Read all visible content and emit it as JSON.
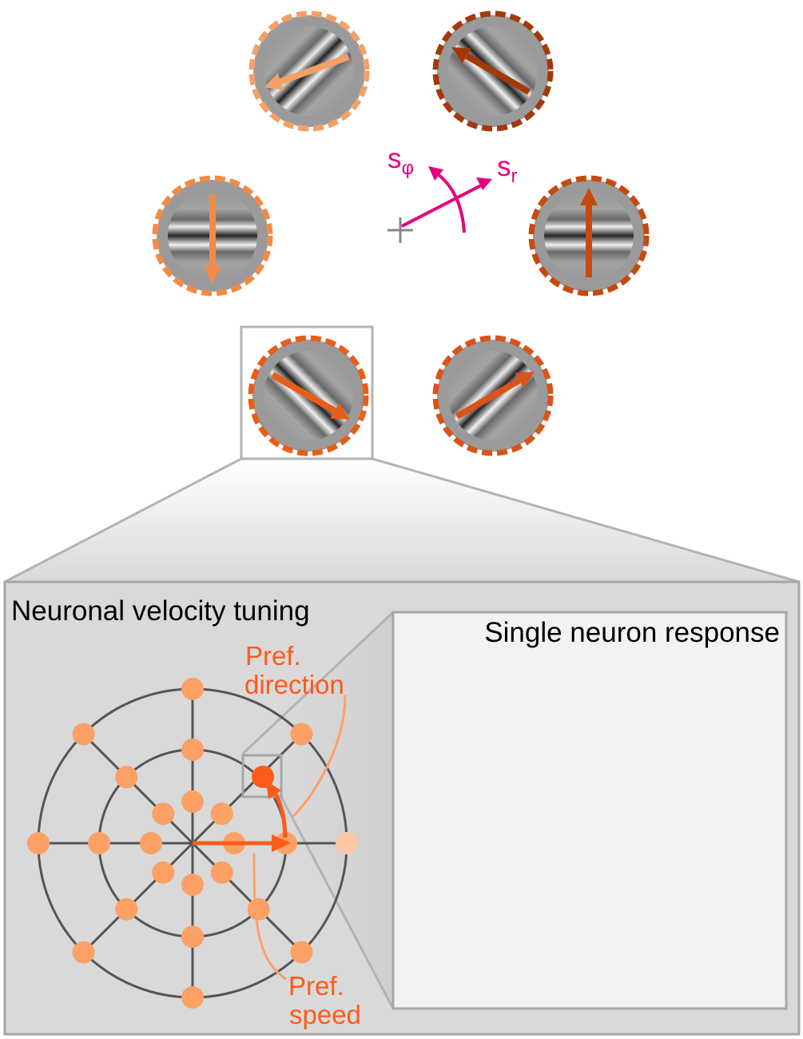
{
  "labels": {
    "s_phi": "s",
    "s_phi_sub": "φ",
    "s_r": "s",
    "s_r_sub": "r",
    "tuning_title": "Neuronal velocity tuning",
    "response_title": "Single neuron response",
    "pref_direction_line1": "Pref.",
    "pref_direction_line2": "direction",
    "pref_speed_line1": "Pref.",
    "pref_speed_line2": "speed"
  },
  "colors": {
    "axis_magenta": "#e6007e",
    "pref_orange": "#ff5a1a",
    "dot_orange": "#fca066",
    "grid_gray": "#555555",
    "panel_gray": "#d9d9d9",
    "inner_panel": "#f2f2f2"
  },
  "stimuli": [
    {
      "name": "stimulus-upper-left",
      "angle_deg": 200,
      "stripe_angle_deg": -45,
      "color": "#f4a066",
      "highlighted": false
    },
    {
      "name": "stimulus-upper-right",
      "angle_deg": 150,
      "stripe_angle_deg": 45,
      "color": "#a2390c",
      "highlighted": false
    },
    {
      "name": "stimulus-mid-left",
      "angle_deg": 270,
      "stripe_angle_deg": 0,
      "color": "#f58a47",
      "highlighted": false
    },
    {
      "name": "stimulus-mid-right",
      "angle_deg": 90,
      "stripe_angle_deg": 0,
      "color": "#c64a0f",
      "highlighted": false
    },
    {
      "name": "stimulus-lower-left",
      "angle_deg": -30,
      "stripe_angle_deg": 45,
      "color": "#eb5d17",
      "highlighted": true
    },
    {
      "name": "stimulus-lower-right",
      "angle_deg": 30,
      "stripe_angle_deg": -45,
      "color": "#d9531a",
      "highlighted": false
    }
  ]
}
